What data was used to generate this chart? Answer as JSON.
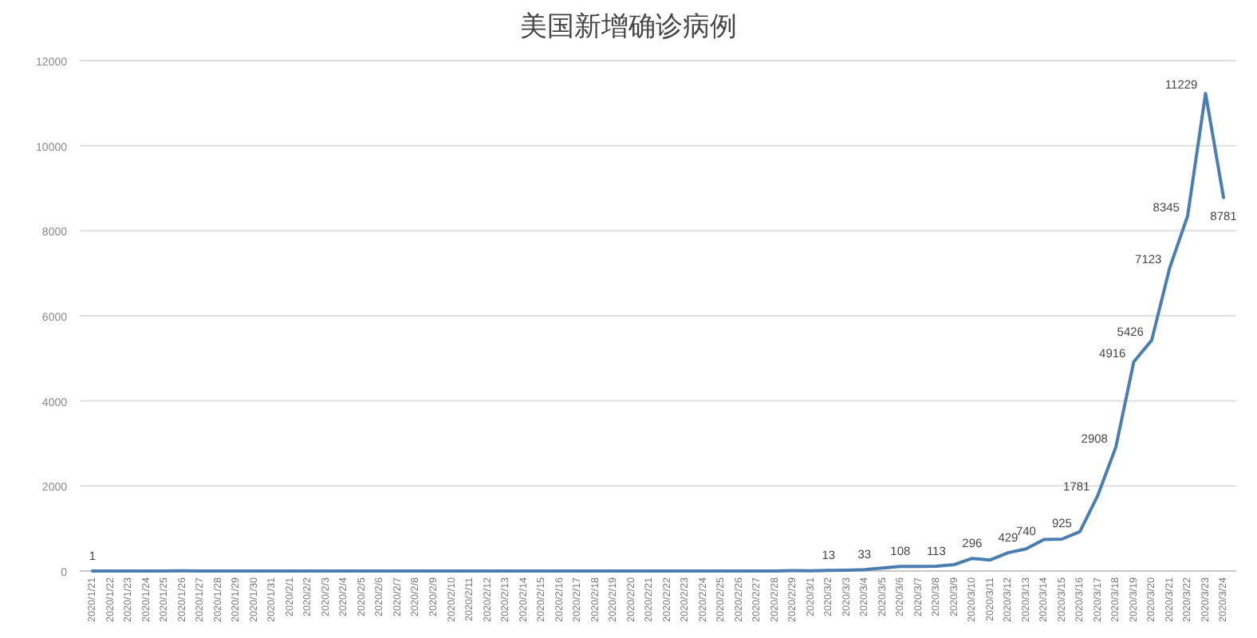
{
  "chart_data": {
    "type": "line",
    "title": "美国新增确诊病例",
    "color": "#4a7eb0",
    "categories": [
      "2020/1/21",
      "2020/1/22",
      "2020/1/23",
      "2020/1/24",
      "2020/1/25",
      "2020/1/26",
      "2020/1/27",
      "2020/1/28",
      "2020/1/29",
      "2020/1/30",
      "2020/1/31",
      "2020/2/1",
      "2020/2/2",
      "2020/2/3",
      "2020/2/4",
      "2020/2/5",
      "2020/2/6",
      "2020/2/7",
      "2020/2/8",
      "2020/2/9",
      "2020/2/10",
      "2020/2/11",
      "2020/2/12",
      "2020/2/13",
      "2020/2/14",
      "2020/2/15",
      "2020/2/16",
      "2020/2/17",
      "2020/2/18",
      "2020/2/19",
      "2020/2/20",
      "2020/2/21",
      "2020/2/22",
      "2020/2/23",
      "2020/2/24",
      "2020/2/25",
      "2020/2/26",
      "2020/2/27",
      "2020/2/28",
      "2020/2/29",
      "2020/3/1",
      "2020/3/2",
      "2020/3/3",
      "2020/3/4",
      "2020/3/5",
      "2020/3/6",
      "2020/3/7",
      "2020/3/8",
      "2020/3/9",
      "2020/3/10",
      "2020/3/11",
      "2020/3/12",
      "2020/3/13",
      "2020/3/14",
      "2020/3/15",
      "2020/3/16",
      "2020/3/17",
      "2020/3/18",
      "2020/3/19",
      "2020/3/20",
      "2020/3/21",
      "2020/3/22",
      "2020/3/23",
      "2020/3/24"
    ],
    "values": [
      1,
      0,
      0,
      1,
      0,
      3,
      0,
      0,
      0,
      1,
      0,
      1,
      2,
      0,
      0,
      1,
      0,
      0,
      0,
      0,
      1,
      0,
      0,
      1,
      0,
      0,
      0,
      0,
      0,
      0,
      0,
      2,
      0,
      0,
      0,
      0,
      0,
      1,
      1,
      7,
      5,
      13,
      20,
      33,
      70,
      108,
      110,
      113,
      150,
      296,
      260,
      429,
      520,
      740,
      750,
      925,
      1781,
      2908,
      4916,
      5426,
      7123,
      8345,
      11229,
      8781
    ],
    "value_labels": [
      "1",
      null,
      null,
      null,
      null,
      null,
      null,
      null,
      null,
      null,
      null,
      null,
      null,
      null,
      null,
      null,
      null,
      null,
      null,
      null,
      null,
      null,
      null,
      null,
      null,
      null,
      null,
      null,
      null,
      null,
      null,
      null,
      null,
      null,
      null,
      null,
      null,
      null,
      null,
      null,
      null,
      "13",
      null,
      "33",
      null,
      "108",
      null,
      "113",
      null,
      "296",
      null,
      "429",
      null,
      "740",
      null,
      "925",
      "1781",
      "2908",
      "4916",
      "5426",
      "7123",
      "8345",
      "11229",
      "8781"
    ],
    "ylim": [
      0,
      12000
    ],
    "yticks": [
      0,
      2000,
      4000,
      6000,
      8000,
      10000,
      12000
    ],
    "grid": "y"
  }
}
